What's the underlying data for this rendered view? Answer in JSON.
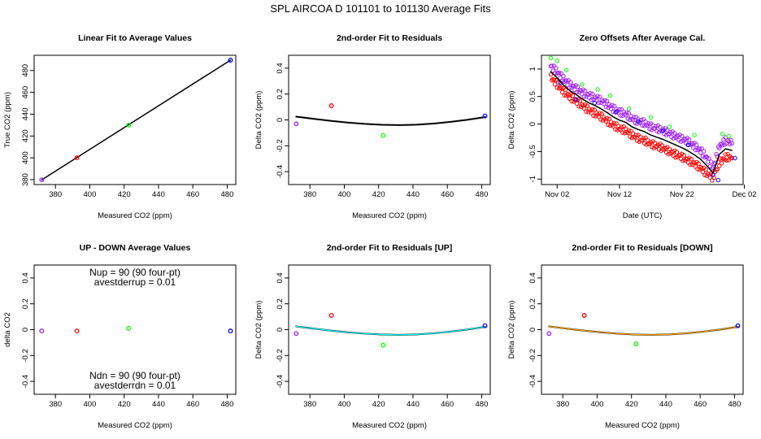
{
  "figure": {
    "title": "SPL    AIRCOA D    101101 to 101130    Average Fits"
  },
  "colors": {
    "purple": "#a020f0",
    "red": "#ff0000",
    "green": "#00ff00",
    "blue": "#0000ff",
    "black": "#000000",
    "cyan": "#00ffff",
    "orange": "#ffa500"
  },
  "chart_data": [
    {
      "type": "scatter",
      "title": "Linear Fit to Average Values",
      "xlabel": "Measured CO2 (ppm)",
      "ylabel": "True CO2 (ppm)",
      "xlim": [
        367.6,
        485.0
      ],
      "ylim": [
        375.5,
        494.0
      ],
      "xticks": [
        380,
        400,
        420,
        440,
        460,
        480
      ],
      "yticks": [
        380,
        400,
        420,
        440,
        460,
        480
      ],
      "points": [
        {
          "x": 372.0,
          "y": 379.8,
          "color": "purple"
        },
        {
          "x": 392.5,
          "y": 400.0,
          "color": "red"
        },
        {
          "x": 422.6,
          "y": 430.0,
          "color": "green"
        },
        {
          "x": 481.9,
          "y": 489.5,
          "color": "blue"
        }
      ],
      "fit_line": {
        "x": [
          372.0,
          481.9
        ],
        "y": [
          379.8,
          489.5
        ],
        "color": "black"
      }
    },
    {
      "type": "scatter",
      "title": "2nd-order Fit to Residuals",
      "xlabel": "Measured CO2 (ppm)",
      "ylabel": "Delta CO2 (ppm)",
      "xlim": [
        367.6,
        485.0
      ],
      "ylim": [
        -0.5,
        0.5
      ],
      "xticks": [
        380,
        400,
        420,
        440,
        460,
        480
      ],
      "yticks": [
        -0.4,
        -0.2,
        0.0,
        0.2,
        0.4
      ],
      "points": [
        {
          "x": 372.0,
          "y": -0.03,
          "color": "purple"
        },
        {
          "x": 392.5,
          "y": 0.11,
          "color": "red"
        },
        {
          "x": 422.6,
          "y": -0.12,
          "color": "green"
        },
        {
          "x": 481.9,
          "y": 0.03,
          "color": "blue"
        }
      ],
      "fit_curve": {
        "x": [
          372,
          382,
          392,
          402,
          412,
          422,
          432,
          442,
          452,
          462,
          472,
          482
        ],
        "y": [
          0.025,
          0.009,
          -0.007,
          -0.021,
          -0.031,
          -0.038,
          -0.04,
          -0.037,
          -0.028,
          -0.015,
          0.002,
          0.022
        ],
        "color": "black"
      }
    },
    {
      "type": "scatter",
      "title": "Zero Offsets After Average Cal.",
      "xlabel": "Date (UTC)",
      "ylabel": "Delta CO2 (ppm)",
      "xlim": [
        -1.5,
        30.8
      ],
      "ylim": [
        -1.1,
        1.25
      ],
      "xticks": [
        1,
        11,
        21,
        31
      ],
      "xticklabels": [
        "Nov 02",
        "Nov 12",
        "Nov 22",
        "Dec 02"
      ],
      "yticks": [
        -1.0,
        -0.5,
        0.0,
        0.5,
        1.0
      ],
      "series": [
        {
          "color": "purple",
          "x": [
            0.0,
            1.0,
            2.0,
            3.0,
            4.0,
            5.0,
            6.0,
            7.0,
            8.0,
            9.0,
            10.0,
            11.0,
            12.0,
            13.0,
            14.0,
            15.0,
            16.0,
            17.0,
            18.0,
            19.0,
            20.0,
            21.0,
            22.0,
            23.0,
            24.0,
            25.0,
            26.0,
            27.0,
            28.0,
            29.0
          ],
          "y": [
            1.05,
            0.95,
            0.82,
            0.72,
            0.65,
            0.58,
            0.52,
            0.48,
            0.43,
            0.36,
            0.28,
            0.22,
            0.18,
            0.1,
            0.05,
            0.02,
            -0.05,
            -0.08,
            -0.12,
            -0.17,
            -0.22,
            -0.27,
            -0.32,
            -0.4,
            -0.48,
            -0.62,
            -0.8,
            -0.4,
            -0.3,
            -0.35
          ]
        },
        {
          "color": "red",
          "x": [
            0.0,
            1.0,
            2.0,
            3.0,
            4.0,
            5.0,
            6.0,
            7.0,
            8.0,
            9.0,
            10.0,
            11.0,
            12.0,
            13.0,
            14.0,
            15.0,
            16.0,
            17.0,
            18.0,
            19.0,
            20.0,
            21.0,
            22.0,
            23.0,
            24.0,
            25.0,
            26.0,
            27.0,
            28.0,
            29.0
          ],
          "y": [
            0.85,
            0.72,
            0.6,
            0.5,
            0.42,
            0.34,
            0.26,
            0.2,
            0.14,
            0.06,
            -0.02,
            -0.08,
            -0.12,
            -0.2,
            -0.26,
            -0.3,
            -0.36,
            -0.4,
            -0.44,
            -0.5,
            -0.55,
            -0.6,
            -0.66,
            -0.72,
            -0.8,
            -0.9,
            -0.98,
            -0.7,
            -0.6,
            -0.62
          ]
        },
        {
          "color": "green",
          "x": [
            0.0,
            1.0,
            2.5,
            5.0,
            7.5,
            9.5,
            12.5,
            16.0,
            19.0,
            23.0,
            27.5,
            28.5
          ],
          "y": [
            1.2,
            1.15,
            0.98,
            0.72,
            0.63,
            0.52,
            0.28,
            0.12,
            -0.05,
            -0.2,
            -0.18,
            -0.22
          ]
        },
        {
          "color": "blue",
          "x": [
            1.5,
            4.0,
            7.0,
            10.5,
            14.0,
            18.0,
            22.0,
            26.0,
            26.8,
            29.5
          ],
          "y": [
            0.75,
            0.45,
            0.38,
            0.22,
            0.05,
            -0.12,
            -0.38,
            -0.92,
            -1.02,
            -0.62
          ]
        }
      ],
      "line": {
        "color": "black",
        "x": [
          0.0,
          1.0,
          2.0,
          3.0,
          4.0,
          5.0,
          6.0,
          7.0,
          8.0,
          9.0,
          10.0,
          11.0,
          12.0,
          13.0,
          14.0,
          15.0,
          16.0,
          17.0,
          18.0,
          19.0,
          20.0,
          21.0,
          22.0,
          23.0,
          24.0,
          25.0,
          26.0,
          27.0,
          28.0,
          29.0
        ],
        "y": [
          0.95,
          0.84,
          0.71,
          0.61,
          0.54,
          0.46,
          0.39,
          0.34,
          0.28,
          0.21,
          0.13,
          0.07,
          0.03,
          -0.05,
          -0.1,
          -0.14,
          -0.2,
          -0.24,
          -0.28,
          -0.33,
          -0.38,
          -0.43,
          -0.49,
          -0.56,
          -0.64,
          -0.76,
          -0.89,
          -0.55,
          -0.45,
          -0.48
        ]
      }
    },
    {
      "type": "scatter",
      "title": "UP - DOWN Average Values",
      "xlabel": "Measured CO2 (ppm)",
      "ylabel": "delta CO2",
      "xlim": [
        367.6,
        485.0
      ],
      "ylim": [
        -0.5,
        0.5
      ],
      "xticks": [
        380,
        400,
        420,
        440,
        460,
        480
      ],
      "yticks": [
        -0.4,
        -0.2,
        0.0,
        0.2,
        0.4
      ],
      "points": [
        {
          "x": 372.0,
          "y": -0.01,
          "color": "purple"
        },
        {
          "x": 392.5,
          "y": -0.01,
          "color": "red"
        },
        {
          "x": 422.6,
          "y": 0.01,
          "color": "green"
        },
        {
          "x": 481.9,
          "y": -0.01,
          "color": "blue"
        }
      ],
      "annotations": {
        "up_line1": "Nup = 90 (90 four-pt)",
        "up_line2": "avestderrup =  0.01",
        "dn_line1": "Ndn = 90 (90 four-pt)",
        "dn_line2": "avestderrdn =  0.01"
      }
    },
    {
      "type": "scatter",
      "title": "2nd-order Fit to Residuals [UP]",
      "xlabel": "Measured CO2 (ppm)",
      "ylabel": "Delta CO2 (ppm)",
      "xlim": [
        367.6,
        485.0
      ],
      "ylim": [
        -0.5,
        0.5
      ],
      "xticks": [
        380,
        400,
        420,
        440,
        460,
        480
      ],
      "yticks": [
        -0.4,
        -0.2,
        0.0,
        0.2,
        0.4
      ],
      "points": [
        {
          "x": 372.0,
          "y": -0.03,
          "color": "purple"
        },
        {
          "x": 392.5,
          "y": 0.11,
          "color": "red"
        },
        {
          "x": 422.6,
          "y": -0.12,
          "color": "green"
        },
        {
          "x": 481.9,
          "y": 0.03,
          "color": "blue"
        }
      ],
      "fit_curve": {
        "x": [
          372,
          382,
          392,
          402,
          412,
          422,
          432,
          442,
          452,
          462,
          472,
          482
        ],
        "y": [
          0.025,
          0.009,
          -0.007,
          -0.021,
          -0.031,
          -0.038,
          -0.04,
          -0.037,
          -0.028,
          -0.015,
          0.002,
          0.022
        ],
        "color": "black",
        "overlay_color": "cyan"
      }
    },
    {
      "type": "scatter",
      "title": "2nd-order Fit to Residuals [DOWN]",
      "xlabel": "Measured CO2 (ppm)",
      "ylabel": "Delta CO2 (ppm)",
      "xlim": [
        367.6,
        485.0
      ],
      "ylim": [
        -0.5,
        0.5
      ],
      "xticks": [
        380,
        400,
        420,
        440,
        460,
        480
      ],
      "yticks": [
        -0.4,
        -0.2,
        0.0,
        0.2,
        0.4
      ],
      "points": [
        {
          "x": 372.0,
          "y": -0.03,
          "color": "purple"
        },
        {
          "x": 392.5,
          "y": 0.11,
          "color": "red"
        },
        {
          "x": 422.6,
          "y": -0.11,
          "color": "green"
        },
        {
          "x": 481.9,
          "y": 0.03,
          "color": "blue"
        }
      ],
      "fit_curve": {
        "x": [
          372,
          382,
          392,
          402,
          412,
          422,
          432,
          442,
          452,
          462,
          472,
          482
        ],
        "y": [
          0.025,
          0.009,
          -0.007,
          -0.021,
          -0.031,
          -0.038,
          -0.04,
          -0.037,
          -0.028,
          -0.015,
          0.002,
          0.022
        ],
        "color": "black",
        "overlay_color": "orange"
      }
    }
  ]
}
